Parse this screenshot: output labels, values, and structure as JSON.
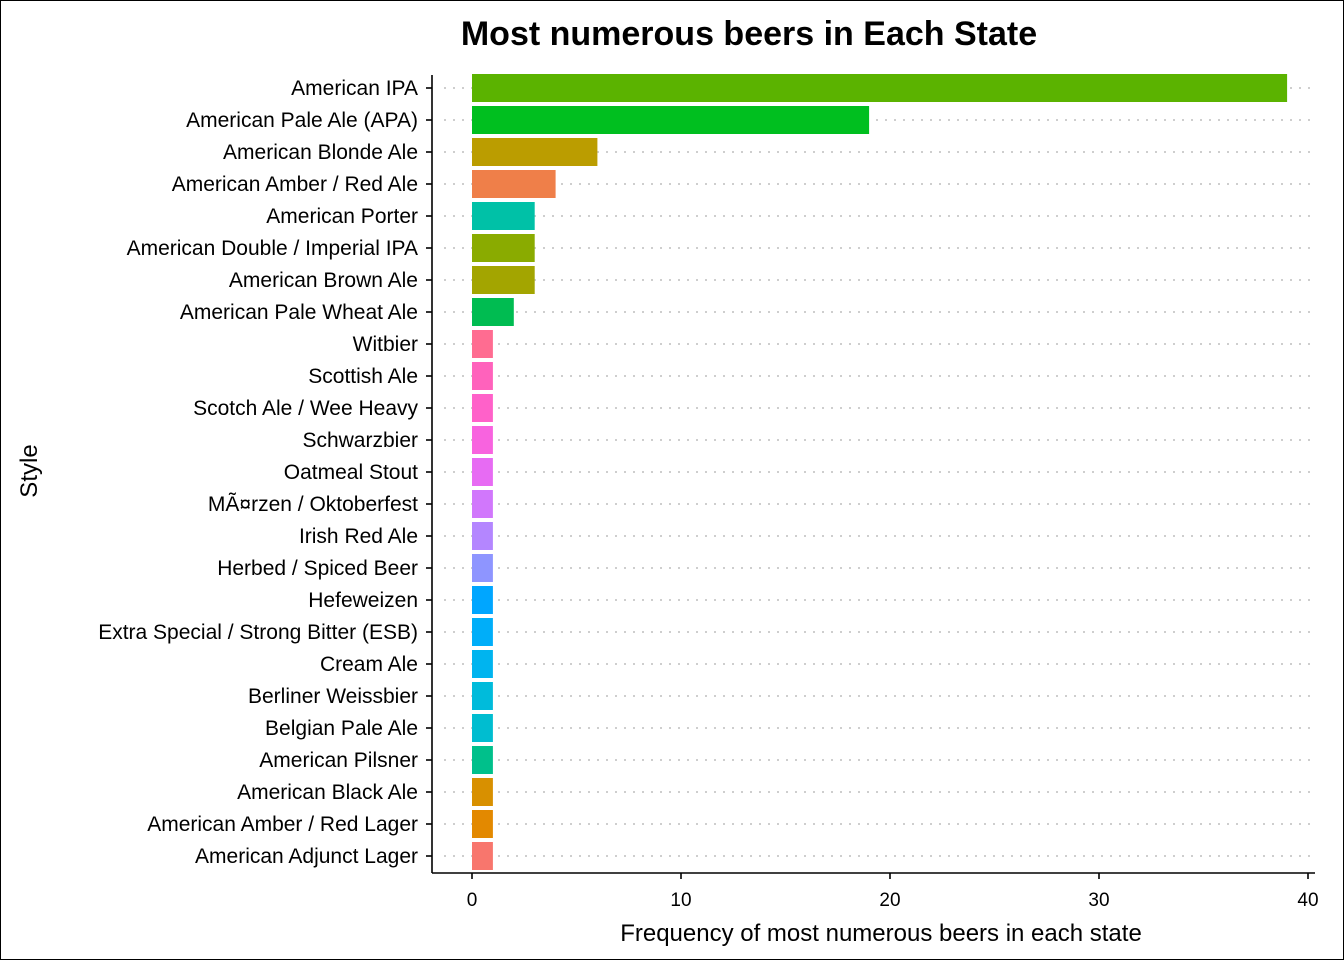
{
  "chart_data": {
    "type": "bar",
    "orientation": "horizontal",
    "title": "Most numerous beers in Each State",
    "xlabel": "Frequency of most numerous beers in each state",
    "ylabel": "Style",
    "xlim": [
      0,
      40
    ],
    "xticks": [
      0,
      10,
      20,
      30,
      40
    ],
    "grid": "dotted horizontal",
    "legend": "none",
    "categories": [
      "American IPA",
      "American Pale Ale (APA)",
      "American Blonde Ale",
      "American Amber / Red Ale",
      "American Porter",
      "American Double / Imperial IPA",
      "American Brown Ale",
      "American Pale Wheat Ale",
      "Witbier",
      "Scottish Ale",
      "Scotch Ale / Wee Heavy",
      "Schwarzbier",
      "Oatmeal Stout",
      "MÃ¤rzen / Oktoberfest",
      "Irish Red Ale",
      "Herbed / Spiced Beer",
      "Hefeweizen",
      "Extra Special / Strong Bitter (ESB)",
      "Cream Ale",
      "Berliner Weissbier",
      "Belgian Pale Ale",
      "American Pilsner",
      "American Black Ale",
      "American Amber / Red Lager",
      "American Adjunct Lager"
    ],
    "values": [
      39,
      19,
      6,
      4,
      3,
      3,
      3,
      2,
      1,
      1,
      1,
      1,
      1,
      1,
      1,
      1,
      1,
      1,
      1,
      1,
      1,
      1,
      1,
      1,
      1
    ],
    "colors": [
      "#5BB300",
      "#00BF1F",
      "#BB9D00",
      "#EF7F49",
      "#00C1A7",
      "#8AAB00",
      "#A3A500",
      "#00BC51",
      "#FF6C91",
      "#FF62BC",
      "#FF61C9",
      "#F863DF",
      "#E76BF3",
      "#D177FC",
      "#B486FF",
      "#8E95FF",
      "#00A6FF",
      "#00AEF9",
      "#00B4EF",
      "#00BBDB",
      "#00BDD0",
      "#00C08B",
      "#D89000",
      "#E38900",
      "#F8766D"
    ]
  }
}
